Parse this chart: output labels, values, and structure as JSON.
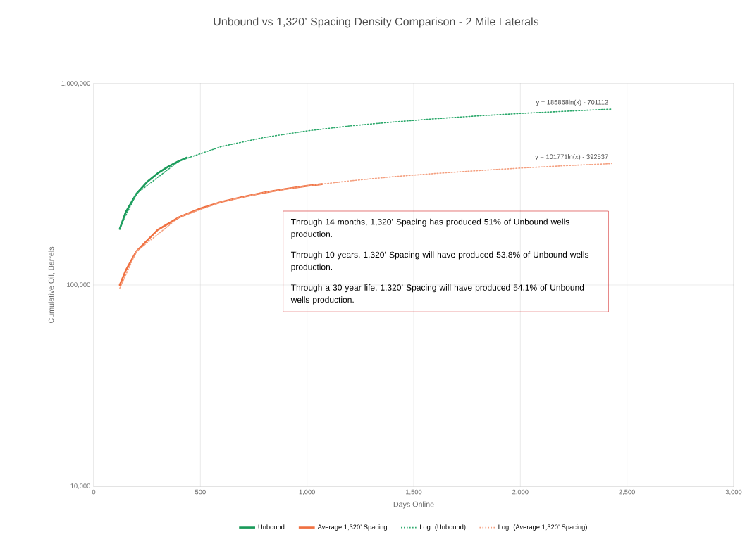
{
  "chart_data": {
    "type": "line",
    "title": "Unbound vs 1,320’ Spacing Density Comparison - 2 Mile Laterals",
    "xlabel": "Days Online",
    "ylabel": "Cumulative Oil, Barrels",
    "log": "y",
    "grid": true,
    "legend": "bottom",
    "marker": "none",
    "xlim": [
      0,
      3000
    ],
    "ylim": [
      10000,
      1000000
    ],
    "xticks": [
      0,
      500,
      {
        "value": 1000,
        "label": "1,000"
      },
      {
        "value": 1500,
        "label": "1,500"
      },
      {
        "value": 2000,
        "label": "2,000"
      },
      {
        "value": 2500,
        "label": "2,500"
      },
      {
        "value": 3000,
        "label": "3,000"
      }
    ],
    "yticks": [
      {
        "value": 10000,
        "label": "10,000"
      },
      {
        "value": 100000,
        "label": "100,000"
      },
      {
        "value": 1000000,
        "label": "1,000,000"
      }
    ],
    "series": [
      {
        "name": "Unbound",
        "color": "#1a9a5a",
        "line_style": "solid",
        "x": [
          122,
          150,
          200,
          250,
          300,
          350,
          400,
          436
        ],
        "values": [
          190000,
          230000,
          284000,
          325000,
          359000,
          388000,
          413000,
          429000
        ]
      },
      {
        "name": "Average 1,320’ Spacing",
        "color": "#f07040",
        "line_style": "solid",
        "x": [
          122,
          150,
          200,
          300,
          400,
          500,
          600,
          700,
          800,
          900,
          1000,
          1070
        ],
        "values": [
          100000,
          118000,
          147000,
          188000,
          217000,
          240000,
          259000,
          274000,
          288000,
          300000,
          311000,
          317000
        ]
      },
      {
        "name": "Log. (Unbound)",
        "color": "#2aa86a",
        "line_style": "dotted",
        "x": [
          122,
          200,
          400,
          600,
          800,
          1000,
          1200,
          1400,
          1600,
          1800,
          2000,
          2200,
          2428
        ],
        "values": [
          192000,
          284000,
          413000,
          488000,
          541000,
          583000,
          617000,
          645000,
          670000,
          692000,
          712000,
          729000,
          748000
        ]
      },
      {
        "name": "Log. (Average 1,320’ Spacing)",
        "color": "#f4a080",
        "line_style": "dotted",
        "x": [
          122,
          200,
          400,
          600,
          800,
          1000,
          1200,
          1400,
          1600,
          1800,
          2000,
          2200,
          2428
        ],
        "values": [
          96400,
          147000,
          217000,
          259000,
          288000,
          311000,
          329000,
          345000,
          358000,
          370000,
          381000,
          391000,
          401000
        ]
      }
    ],
    "annotations": [
      {
        "text": "y = 185868ln(x) - 701112",
        "x": 2428,
        "y": 748000
      },
      {
        "text": "y = 101771ln(x) - 392537",
        "x": 2428,
        "y": 401000
      },
      "Through  14 months, 1,320’ Spacing has produced 51% of Unbound wells production.",
      "Through 10 years, 1,320’ Spacing will have produced 53.8% of Unbound wells production.",
      "Through a 30 year life, 1,320’ Spacing will have produced 54.1% of Unbound wells production."
    ]
  }
}
